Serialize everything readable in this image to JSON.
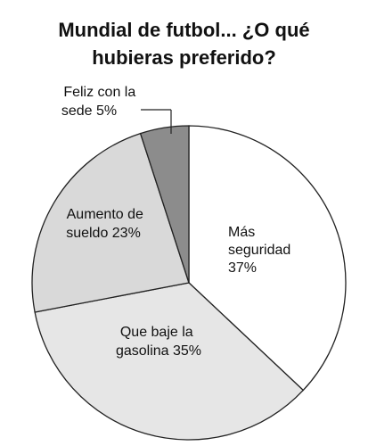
{
  "chart_data": {
    "type": "pie",
    "title_lines": [
      "Mundial de futbol... ¿O qué",
      "hubieras preferido?"
    ],
    "slices": [
      {
        "label_lines": [
          "Más",
          "seguridad",
          "37%"
        ],
        "value": 37,
        "color": "#ffffff"
      },
      {
        "label_lines": [
          "Que baje la",
          "gasolina 35%"
        ],
        "value": 35,
        "color": "#e6e6e6"
      },
      {
        "label_lines": [
          "Aumento de",
          "sueldo 23%"
        ],
        "value": 23,
        "color": "#d9d9d9"
      },
      {
        "label_lines": [
          "Feliz con la",
          "sede 5%"
        ],
        "value": 5,
        "color": "#8c8c8c"
      }
    ],
    "start_angle": "12 o'clock",
    "direction": "clockwise",
    "stroke_color": "#222222"
  }
}
